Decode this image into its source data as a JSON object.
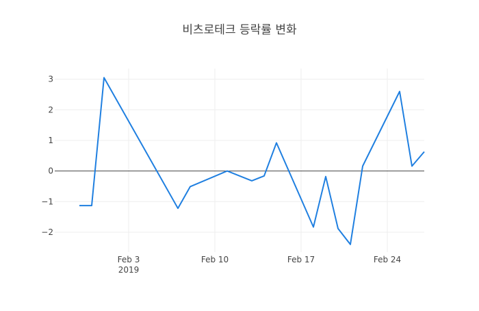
{
  "chart_data": {
    "type": "line",
    "title": "비츠로테크 등락률 변화",
    "xlabel": "",
    "ylabel": "",
    "x": [
      "2019-01-30",
      "2019-01-31",
      "2019-02-01",
      "2019-02-07",
      "2019-02-08",
      "2019-02-11",
      "2019-02-13",
      "2019-02-14",
      "2019-02-15",
      "2019-02-18",
      "2019-02-19",
      "2019-02-20",
      "2019-02-21",
      "2019-02-22",
      "2019-02-25",
      "2019-02-26",
      "2019-02-27"
    ],
    "series": [
      {
        "name": "",
        "values": [
          -1.13,
          -1.13,
          3.05,
          -1.22,
          -0.51,
          0.0,
          -0.32,
          -0.16,
          0.92,
          -1.83,
          -0.18,
          -1.88,
          -2.4,
          0.16,
          2.6,
          0.16,
          0.63
        ]
      }
    ],
    "xlim": [
      "2019-01-28",
      "2019-02-27"
    ],
    "ylim": [
      -2.65,
      3.35
    ],
    "x_ticks": [
      {
        "date": "2019-02-03",
        "label": "Feb 3",
        "sublabel": "2019"
      },
      {
        "date": "2019-02-10",
        "label": "Feb 10",
        "sublabel": ""
      },
      {
        "date": "2019-02-17",
        "label": "Feb 17",
        "sublabel": ""
      },
      {
        "date": "2019-02-24",
        "label": "Feb 24",
        "sublabel": ""
      }
    ],
    "y_ticks": [
      {
        "value": 3,
        "label": "3"
      },
      {
        "value": 2,
        "label": "2"
      },
      {
        "value": 1,
        "label": "1"
      },
      {
        "value": 0,
        "label": "0"
      },
      {
        "value": -1,
        "label": "−1"
      },
      {
        "value": -2,
        "label": "−2"
      }
    ],
    "grid": true,
    "zero_line": true,
    "legend": "none",
    "colors": {
      "line": "#1f7fe0",
      "grid": "#eeeeee",
      "zeroline": "#444444",
      "text": "#444444"
    }
  }
}
